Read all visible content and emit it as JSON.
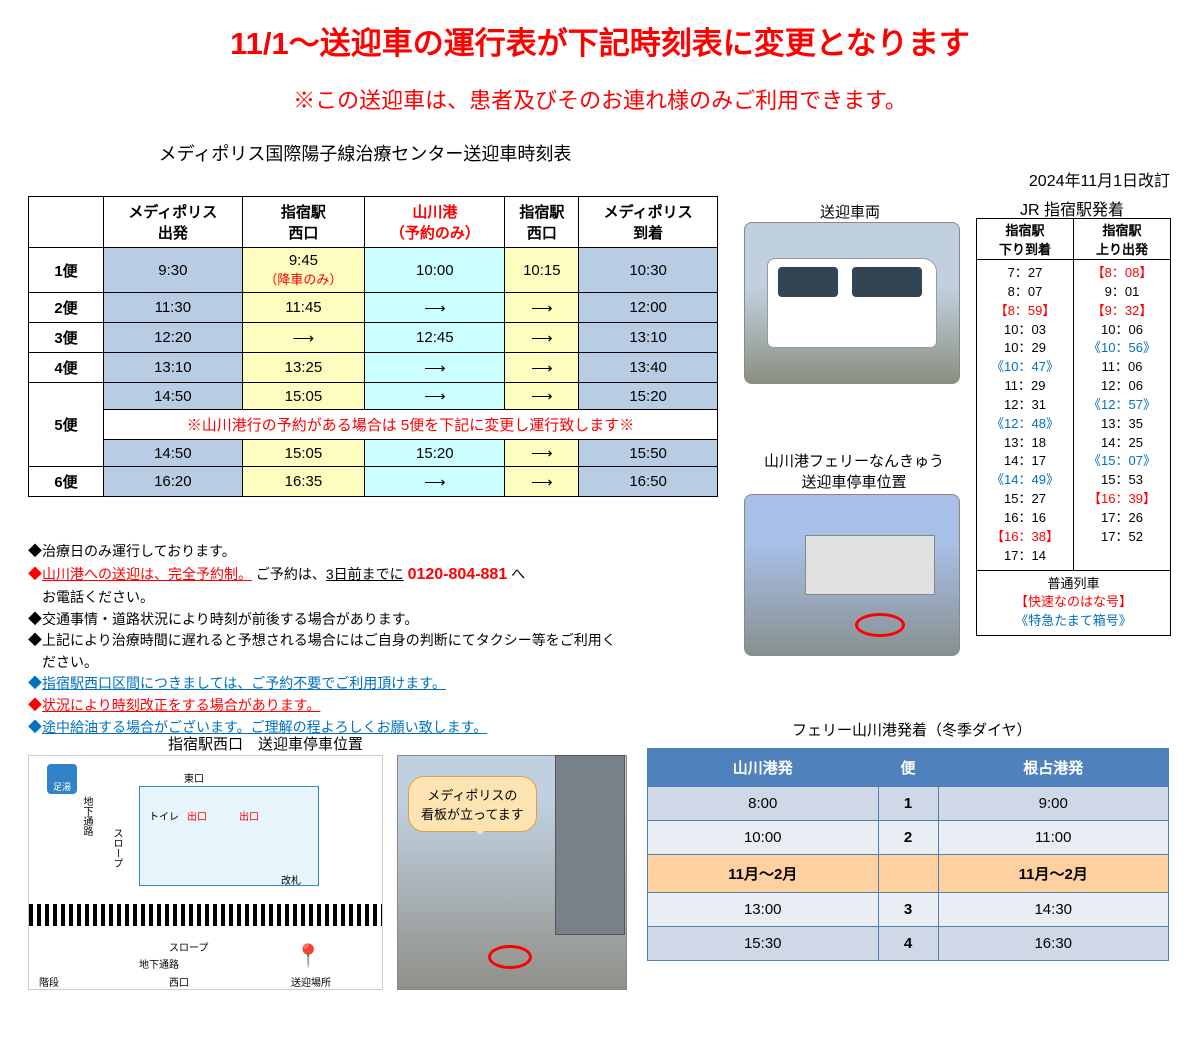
{
  "title": "11/1～送迎車の運行表が下記時刻表に変更となります",
  "subtitle": "※この送迎車は、患者及びそのお連れ様のみご利用できます。",
  "revision": "2024年11月1日改訂",
  "main_table_title": "メディポリス国際陽子線治療センター送迎車時刻表",
  "headers": {
    "h1a": "メディポリス",
    "h1b": "出発",
    "h2a": "指宿駅",
    "h2b": "西口",
    "h3a": "山川港",
    "h3b": "（予約のみ）",
    "h4a": "指宿駅",
    "h4b": "西口",
    "h5a": "メディポリス",
    "h5b": "到着"
  },
  "rows": {
    "r1": {
      "ben": "1便",
      "c1": "9:30",
      "c2": "9:45",
      "c2sub": "（降車のみ）",
      "c3": "10:00",
      "c4": "10:15",
      "c5": "10:30"
    },
    "r2": {
      "ben": "2便",
      "c1": "11:30",
      "c2": "11:45",
      "c5": "12:00"
    },
    "r3": {
      "ben": "3便",
      "c1": "12:20",
      "c3": "12:45",
      "c5": "13:10"
    },
    "r4": {
      "ben": "4便",
      "c1": "13:10",
      "c2": "13:25",
      "c5": "13:40"
    },
    "r5a": {
      "c1": "14:50",
      "c2": "15:05",
      "c5": "15:20"
    },
    "r5_note": "※山川港行の予約がある場合は 5便を下記に変更し運行致します※",
    "r5b": {
      "ben": "5便",
      "c1": "14:50",
      "c2": "15:05",
      "c3": "15:20",
      "c5": "15:50"
    },
    "r6": {
      "ben": "6便",
      "c1": "16:20",
      "c2": "16:35",
      "c5": "16:50"
    }
  },
  "arrow": "⟶",
  "notes": {
    "n1": "◆治療日のみ運行しております。",
    "n2a": "◆",
    "n2b": "山川港への送迎は、完全予約制。",
    "n2c": " ご予約は、",
    "n2d": "3日前までに",
    "n2e": "0120-804-881",
    "n2f": " へ",
    "n2g": "　お電話ください。",
    "n3": "◆交通事情・道路状況により時刻が前後する場合があります。",
    "n4a": "◆上記により治療時間に遅れると予想される場合にはご自身の判断にてタクシー等をご利用く",
    "n4b": "　ださい。",
    "n5a": "◆",
    "n5b": "指宿駅西口区間につきましては、ご予約不要でご利用頂けます。",
    "n6a": "◆",
    "n6b": "状況により時刻改正をする場合があります。",
    "n7a": "◆",
    "n7b": "途中給油する場合がございます。ご理解の程よろしくお願い致します。"
  },
  "vehicle_label": "送迎車両",
  "ferry_label1": "山川港フェリーなんきゅう",
  "ferry_label2": "送迎車停車位置",
  "jr_label": "JR 指宿駅発着",
  "jr": {
    "h1a": "指宿駅",
    "h1b": "下り到着",
    "h2a": "指宿駅",
    "h2b": "上り出発",
    "down": [
      "7：27",
      "8：07",
      "【8：59】",
      "10：03",
      "10：29",
      "《10：47》",
      "11：29",
      "12：31",
      "《12：48》",
      "13：18",
      "14：17",
      "《14：49》",
      "15：27",
      "16：16",
      "【16：38】",
      "17：14"
    ],
    "up": [
      "【8：08】",
      "9：01",
      "【9：32】",
      "10：06",
      "《10：56》",
      "11：06",
      "12：06",
      "《12：57》",
      "13：35",
      "14：25",
      "《15：07》",
      "15：53",
      "【16：39】",
      "17：26",
      "17：52"
    ],
    "down_style": [
      "",
      "",
      "red",
      "",
      "",
      "blue",
      "",
      "",
      "blue",
      "",
      "",
      "blue",
      "",
      "",
      "red",
      ""
    ],
    "up_style": [
      "red",
      "",
      "red",
      "",
      "blue",
      "",
      "",
      "blue",
      "",
      "",
      "blue",
      "",
      "red",
      "",
      ""
    ],
    "legend1": "普通列車",
    "legend2": "【快速なのはな号】",
    "legend3": "《特急たまて箱号》"
  },
  "station_map_label": "指宿駅西口　送迎車停車位置",
  "map": {
    "ashiyu": "足湯",
    "east": "東口",
    "toilet": "トイレ",
    "exit": "出口",
    "kaisatsu": "改札",
    "underpass_v": "地下通路",
    "slope": "スロープ",
    "underpass_h": "地下通路",
    "stairs": "階段",
    "west": "西口",
    "pickup": "送迎場所"
  },
  "callout1": "メディポリスの",
  "callout2": "看板が立ってます",
  "ferry_sched_label": "フェリー山川港発着（冬季ダイヤ）",
  "ferry_table": {
    "h1": "山川港発",
    "h2": "便",
    "h3": "根占港発",
    "r1": {
      "y": "8:00",
      "b": "1",
      "n": "9:00"
    },
    "r2": {
      "y": "10:00",
      "b": "2",
      "n": "11:00"
    },
    "mid": {
      "y": "11月～2月",
      "n": "11月～2月"
    },
    "r3": {
      "y": "13:00",
      "b": "3",
      "n": "14:30"
    },
    "r4": {
      "y": "15:30",
      "b": "4",
      "n": "16:30"
    }
  }
}
